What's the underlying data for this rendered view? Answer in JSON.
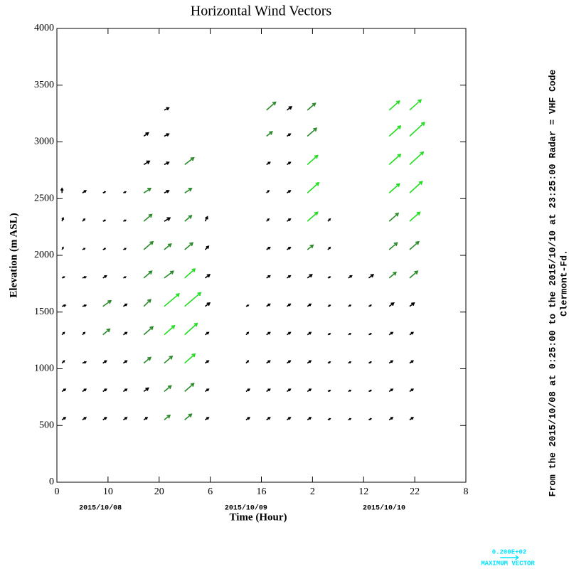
{
  "chart_data": {
    "type": "vector",
    "title": "Horizontal Wind Vectors",
    "x_label": "Time (Hour)",
    "y_label": "Elevation (m ASL)",
    "side_text": [
      "From the 2015/10/08 at  0:25:00 to the 2015/10/10 at 23:25:00 Radar = VHF Code",
      "Clermont-Fd."
    ],
    "xlim": [
      0,
      80
    ],
    "ylim": [
      0,
      4000
    ],
    "xticks": [
      0,
      10,
      20,
      {
        "value": 30,
        "label": "6"
      },
      {
        "value": 40,
        "label": "16"
      },
      {
        "value": 50,
        "label": "2"
      },
      {
        "value": 60,
        "label": "12"
      },
      {
        "value": 70,
        "label": "22"
      },
      {
        "value": 80,
        "label": "8"
      }
    ],
    "yticks": [
      0,
      500,
      1000,
      1500,
      2000,
      2500,
      3000,
      3500,
      4000
    ],
    "date_labels": [
      {
        "value": 8.5,
        "label": "2015/10/08"
      },
      {
        "value": 37,
        "label": "2015/10/09"
      },
      {
        "value": 64,
        "label": "2015/10/10"
      }
    ],
    "max_vector": {
      "value": 20,
      "label": "0.200E+02",
      "caption": "MAXIMUM VECTOR",
      "color": "#00e5ff"
    },
    "speed_colors": [
      {
        "min": 0,
        "color": "#000000"
      },
      {
        "min": 6,
        "color": "#2a8a2a"
      },
      {
        "min": 12,
        "color": "#22dd22"
      }
    ],
    "columns": [
      {
        "x": 1,
        "y": [
          550,
          800,
          1050,
          1300,
          1550,
          1800,
          2050,
          2300,
          2550
        ],
        "u": [
          3,
          3,
          2,
          2,
          3,
          2,
          1,
          1,
          0
        ],
        "v": [
          2,
          2,
          2,
          2,
          1,
          1,
          2,
          3,
          4
        ]
      },
      {
        "x": 5,
        "y": [
          550,
          800,
          1050,
          1300,
          1550,
          1800,
          2050,
          2300,
          2550
        ],
        "u": [
          3,
          3,
          3,
          2,
          3,
          3,
          2,
          2,
          3
        ],
        "v": [
          2,
          2,
          1,
          2,
          1,
          1,
          1,
          2,
          2
        ]
      },
      {
        "x": 9,
        "y": [
          550,
          800,
          1050,
          1300,
          1550,
          1800,
          2050,
          2300,
          2550
        ],
        "u": [
          3,
          3,
          3,
          6,
          7,
          3,
          2,
          2,
          2
        ],
        "v": [
          2,
          2,
          2,
          5,
          5,
          2,
          1,
          1,
          1
        ]
      },
      {
        "x": 13,
        "y": [
          550,
          800,
          1050,
          1300,
          1550,
          1800,
          2050,
          2300,
          2550
        ],
        "u": [
          3,
          3,
          3,
          3,
          3,
          2,
          2,
          2,
          2
        ],
        "v": [
          2,
          2,
          2,
          2,
          2,
          1,
          1,
          1,
          1
        ]
      },
      {
        "x": 17,
        "y": [
          550,
          800,
          1050,
          1300,
          1550,
          1800,
          2050,
          2300,
          2550,
          2800,
          3050
        ],
        "u": [
          3,
          4,
          6,
          8,
          6,
          7,
          8,
          7,
          6,
          5,
          4
        ],
        "v": [
          2,
          3,
          5,
          7,
          6,
          6,
          7,
          6,
          4,
          3,
          3
        ]
      },
      {
        "x": 21,
        "y": [
          550,
          800,
          1050,
          1300,
          1550,
          1800,
          2050,
          2300,
          2550,
          2800,
          3050,
          3280
        ],
        "u": [
          5,
          6,
          7,
          9,
          13,
          8,
          6,
          5,
          4,
          4,
          4,
          4
        ],
        "v": [
          4,
          5,
          6,
          8,
          11,
          6,
          5,
          3,
          2,
          2,
          2,
          2
        ]
      },
      {
        "x": 25,
        "y": [
          550,
          800,
          1050,
          1300,
          1550,
          1800,
          2050,
          2300,
          2550,
          2800
        ],
        "u": [
          6,
          8,
          9,
          11,
          14,
          9,
          7,
          6,
          6,
          8
        ],
        "v": [
          5,
          7,
          8,
          10,
          12,
          8,
          6,
          5,
          4,
          6
        ]
      },
      {
        "x": 29,
        "y": [
          550,
          800,
          1050,
          1300,
          1550,
          1800,
          2050,
          2300
        ],
        "u": [
          3,
          3,
          3,
          3,
          4,
          4,
          3,
          2
        ],
        "v": [
          2,
          2,
          2,
          2,
          3,
          3,
          3,
          4
        ]
      },
      {
        "x": 37,
        "y": [
          550,
          800,
          1050,
          1300,
          1550
        ],
        "u": [
          3,
          3,
          2,
          2,
          2
        ],
        "v": [
          2,
          2,
          2,
          2,
          1
        ]
      },
      {
        "x": 41,
        "y": [
          550,
          800,
          1050,
          1300,
          1550,
          1800,
          2050,
          2300,
          2550,
          2800,
          3050,
          3280
        ],
        "u": [
          3,
          3,
          3,
          3,
          3,
          3,
          3,
          2,
          2,
          3,
          5,
          8
        ],
        "v": [
          2,
          2,
          2,
          2,
          2,
          2,
          2,
          2,
          2,
          2,
          4,
          7
        ]
      },
      {
        "x": 45,
        "y": [
          550,
          800,
          1050,
          1300,
          1550,
          1800,
          2050,
          2300,
          2550,
          2800,
          3050,
          3280
        ],
        "u": [
          3,
          3,
          3,
          3,
          3,
          3,
          3,
          3,
          3,
          3,
          3,
          4
        ],
        "v": [
          2,
          2,
          2,
          2,
          2,
          2,
          2,
          2,
          2,
          2,
          2,
          3
        ]
      },
      {
        "x": 49,
        "y": [
          550,
          800,
          1050,
          1300,
          1550,
          1800,
          2050,
          2300,
          2550,
          2800,
          3050,
          3280
        ],
        "u": [
          3,
          3,
          3,
          3,
          3,
          4,
          5,
          9,
          10,
          9,
          8,
          7
        ],
        "v": [
          2,
          2,
          2,
          2,
          2,
          3,
          4,
          8,
          9,
          8,
          7,
          6
        ]
      },
      {
        "x": 53,
        "y": [
          550,
          800,
          1050,
          1300,
          1550,
          1800,
          2050,
          2300
        ],
        "u": [
          2,
          2,
          2,
          2,
          2,
          2,
          2,
          2
        ],
        "v": [
          1,
          1,
          1,
          1,
          1,
          1,
          2,
          2
        ]
      },
      {
        "x": 57,
        "y": [
          550,
          800,
          1050,
          1300,
          1550,
          1800
        ],
        "u": [
          2,
          2,
          2,
          2,
          2,
          3
        ],
        "v": [
          1,
          1,
          1,
          1,
          1,
          2
        ]
      },
      {
        "x": 61,
        "y": [
          550,
          800,
          1050,
          1300,
          1550,
          1800
        ],
        "u": [
          2,
          2,
          2,
          2,
          2,
          4
        ],
        "v": [
          1,
          1,
          1,
          1,
          1,
          3
        ]
      },
      {
        "x": 65,
        "y": [
          550,
          800,
          1050,
          1300,
          1550,
          1800,
          2050,
          2300,
          2550,
          2800,
          3050,
          3280
        ],
        "u": [
          3,
          3,
          3,
          3,
          4,
          6,
          7,
          8,
          9,
          10,
          10,
          9
        ],
        "v": [
          2,
          2,
          2,
          2,
          3,
          5,
          6,
          7,
          8,
          9,
          9,
          8
        ]
      },
      {
        "x": 69,
        "y": [
          550,
          800,
          1050,
          1300,
          1550,
          1800,
          2050,
          2300,
          2550,
          2800,
          3050,
          3280
        ],
        "u": [
          3,
          3,
          3,
          3,
          4,
          7,
          8,
          9,
          11,
          12,
          13,
          10
        ],
        "v": [
          2,
          2,
          2,
          2,
          3,
          6,
          7,
          8,
          10,
          11,
          12,
          9
        ]
      }
    ]
  }
}
